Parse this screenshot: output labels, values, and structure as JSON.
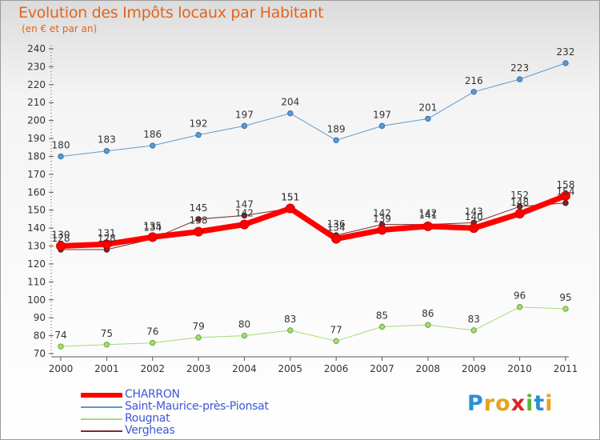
{
  "title": "Evolution des Impôts locaux par Habitant",
  "subtitle": "(en € et par an)",
  "logo_letters": [
    "P",
    "r",
    "o",
    "x",
    "i",
    "t",
    "i"
  ],
  "logo_colors": [
    "#2b8fd6",
    "#e8a21c",
    "#e8a21c",
    "#d8262a",
    "#5bb33a",
    "#2b8fd6",
    "#e8a21c"
  ],
  "chart_data": {
    "type": "line",
    "title": "Evolution des Impôts locaux par Habitant",
    "subtitle": "(en € et par an)",
    "xlabel": "",
    "ylabel": "",
    "x": [
      "2000",
      "2001",
      "2002",
      "2003",
      "2004",
      "2005",
      "2006",
      "2007",
      "2008",
      "2009",
      "2010",
      "2011"
    ],
    "ylim": [
      70,
      240
    ],
    "yticks": [
      70,
      80,
      90,
      100,
      110,
      120,
      130,
      140,
      150,
      160,
      170,
      180,
      190,
      200,
      210,
      220,
      230,
      240
    ],
    "grid": false,
    "legend_position": "bottom-left",
    "series": [
      {
        "name": "Saint-Maurice-près-Pionsat",
        "color": "#5b9bd5",
        "values": [
          180,
          183,
          186,
          192,
          197,
          204,
          189,
          197,
          201,
          216,
          223,
          232
        ],
        "labels": [
          "180",
          "183",
          "186",
          "192",
          "197",
          "204",
          "189",
          "197",
          "201",
          "216",
          "223",
          "232"
        ]
      },
      {
        "name": "Rougnat",
        "color": "#a6dc74",
        "values": [
          74,
          75,
          76,
          79,
          80,
          83,
          77,
          85,
          86,
          83,
          96,
          95
        ],
        "labels": [
          "74",
          "75",
          "76",
          "79",
          "80",
          "83",
          "77",
          "85",
          "86",
          "83",
          "96",
          "95"
        ]
      },
      {
        "name": "Vergheas",
        "color": "#7a2c2c",
        "values": [
          128,
          128,
          134,
          145,
          147,
          151,
          136,
          142,
          142,
          143,
          152,
          154
        ],
        "labels": [
          "128",
          "128",
          "134",
          "145",
          "147",
          "151",
          "136",
          "142",
          "142",
          "143",
          "152",
          "154"
        ]
      },
      {
        "name": "CHARRON",
        "color": "#ff0000",
        "values": [
          130,
          131,
          135,
          138,
          142,
          151,
          134,
          139,
          141,
          140,
          148,
          158
        ],
        "labels": [
          "130",
          "131",
          "135",
          "138",
          "142",
          "151",
          "134",
          "139",
          "141",
          "140",
          "148",
          "158"
        ]
      }
    ],
    "legend": [
      "CHARRON",
      "Saint-Maurice-près-Pionsat",
      "Rougnat",
      "Vergheas"
    ]
  }
}
